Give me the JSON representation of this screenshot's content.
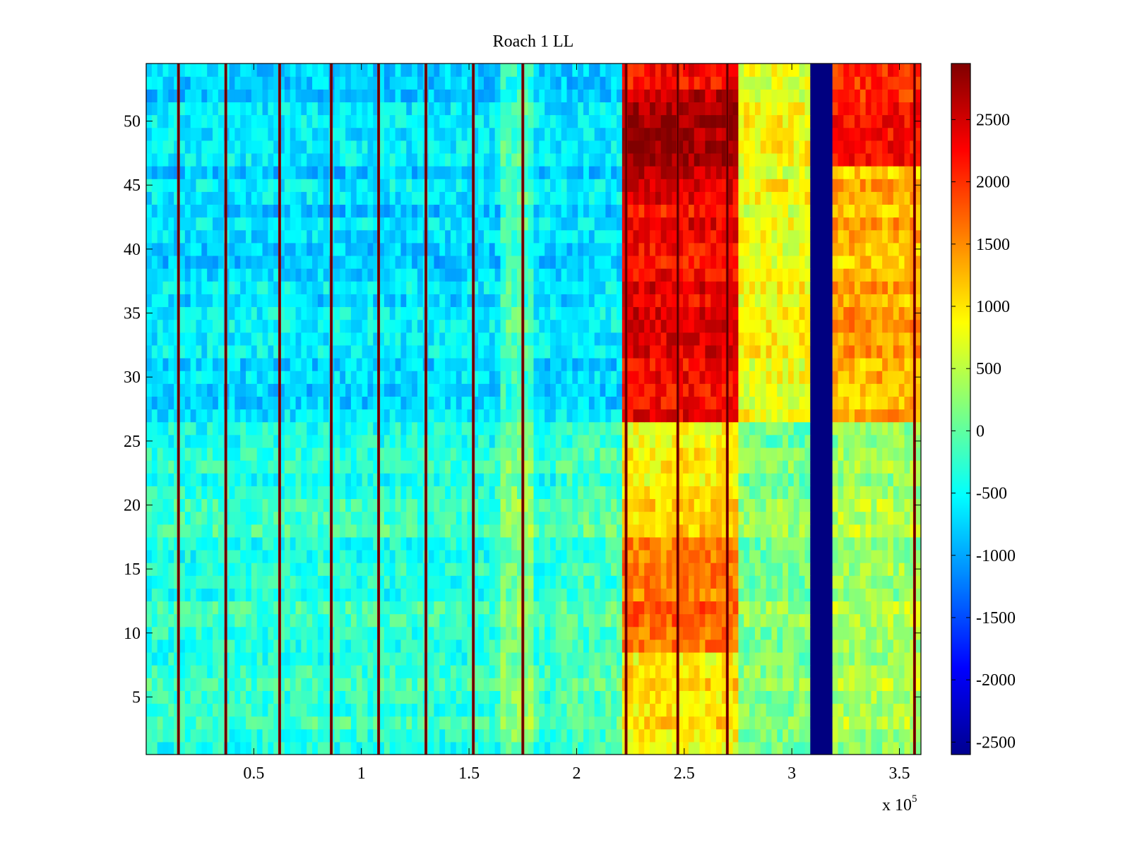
{
  "chart_data": {
    "type": "heatmap",
    "title": "Roach 1 LL",
    "xlabel": "",
    "ylabel": "",
    "x_multiplier_label": "x 10",
    "x_multiplier_exponent": "5",
    "xlim": [
      0,
      3.6
    ],
    "ylim": [
      0.5,
      54.5
    ],
    "x_ticks": [
      0.5,
      1,
      1.5,
      2,
      2.5,
      3,
      3.5
    ],
    "x_tick_labels": [
      "0.5",
      "1",
      "1.5",
      "2",
      "2.5",
      "3",
      "3.5"
    ],
    "y_ticks": [
      5,
      10,
      15,
      20,
      25,
      30,
      35,
      40,
      45,
      50
    ],
    "y_tick_labels": [
      "5",
      "10",
      "15",
      "20",
      "25",
      "30",
      "35",
      "40",
      "45",
      "50"
    ],
    "rows": 54,
    "colormap": "jet",
    "clim": [
      -2600,
      2950
    ],
    "colorbar_ticks": [
      2500,
      2000,
      1500,
      1000,
      500,
      0,
      -500,
      -1000,
      -1500,
      -2000,
      -2500
    ],
    "colorbar_tick_labels": [
      "2500",
      "2000",
      "1500",
      "1000",
      "500",
      "0",
      "-500",
      "-1000",
      "-1500",
      "-2000",
      "-2500"
    ],
    "regions": [
      {
        "x_range": [
          0,
          2.2
        ],
        "y_range": [
          27,
          54
        ],
        "value": -700,
        "description": "cool cyan/blue band"
      },
      {
        "x_range": [
          0,
          2.2
        ],
        "y_range": [
          0.5,
          26
        ],
        "value": -250,
        "description": "cyan-green band"
      },
      {
        "x_range": [
          2.2,
          2.75
        ],
        "y_range": [
          27,
          54
        ],
        "value": 2400,
        "description": "red band"
      },
      {
        "x_range": [
          2.2,
          2.75
        ],
        "y_range": [
          0.5,
          26
        ],
        "value": 1100,
        "description": "yellow-orange band"
      },
      {
        "x_range": [
          3.08,
          3.2
        ],
        "y_range": [
          0.5,
          54.5
        ],
        "value": -2600,
        "description": "dark blue stripe"
      },
      {
        "x_range": [
          3.2,
          3.6
        ],
        "y_range": [
          46.5,
          54.5
        ],
        "value": 2000,
        "description": "orange-red band"
      }
    ],
    "vertical_spike_x": [
      0.15,
      0.37,
      0.62,
      0.86,
      1.08,
      1.3,
      1.52,
      1.75,
      2.23,
      2.47,
      2.7,
      3.57
    ]
  }
}
